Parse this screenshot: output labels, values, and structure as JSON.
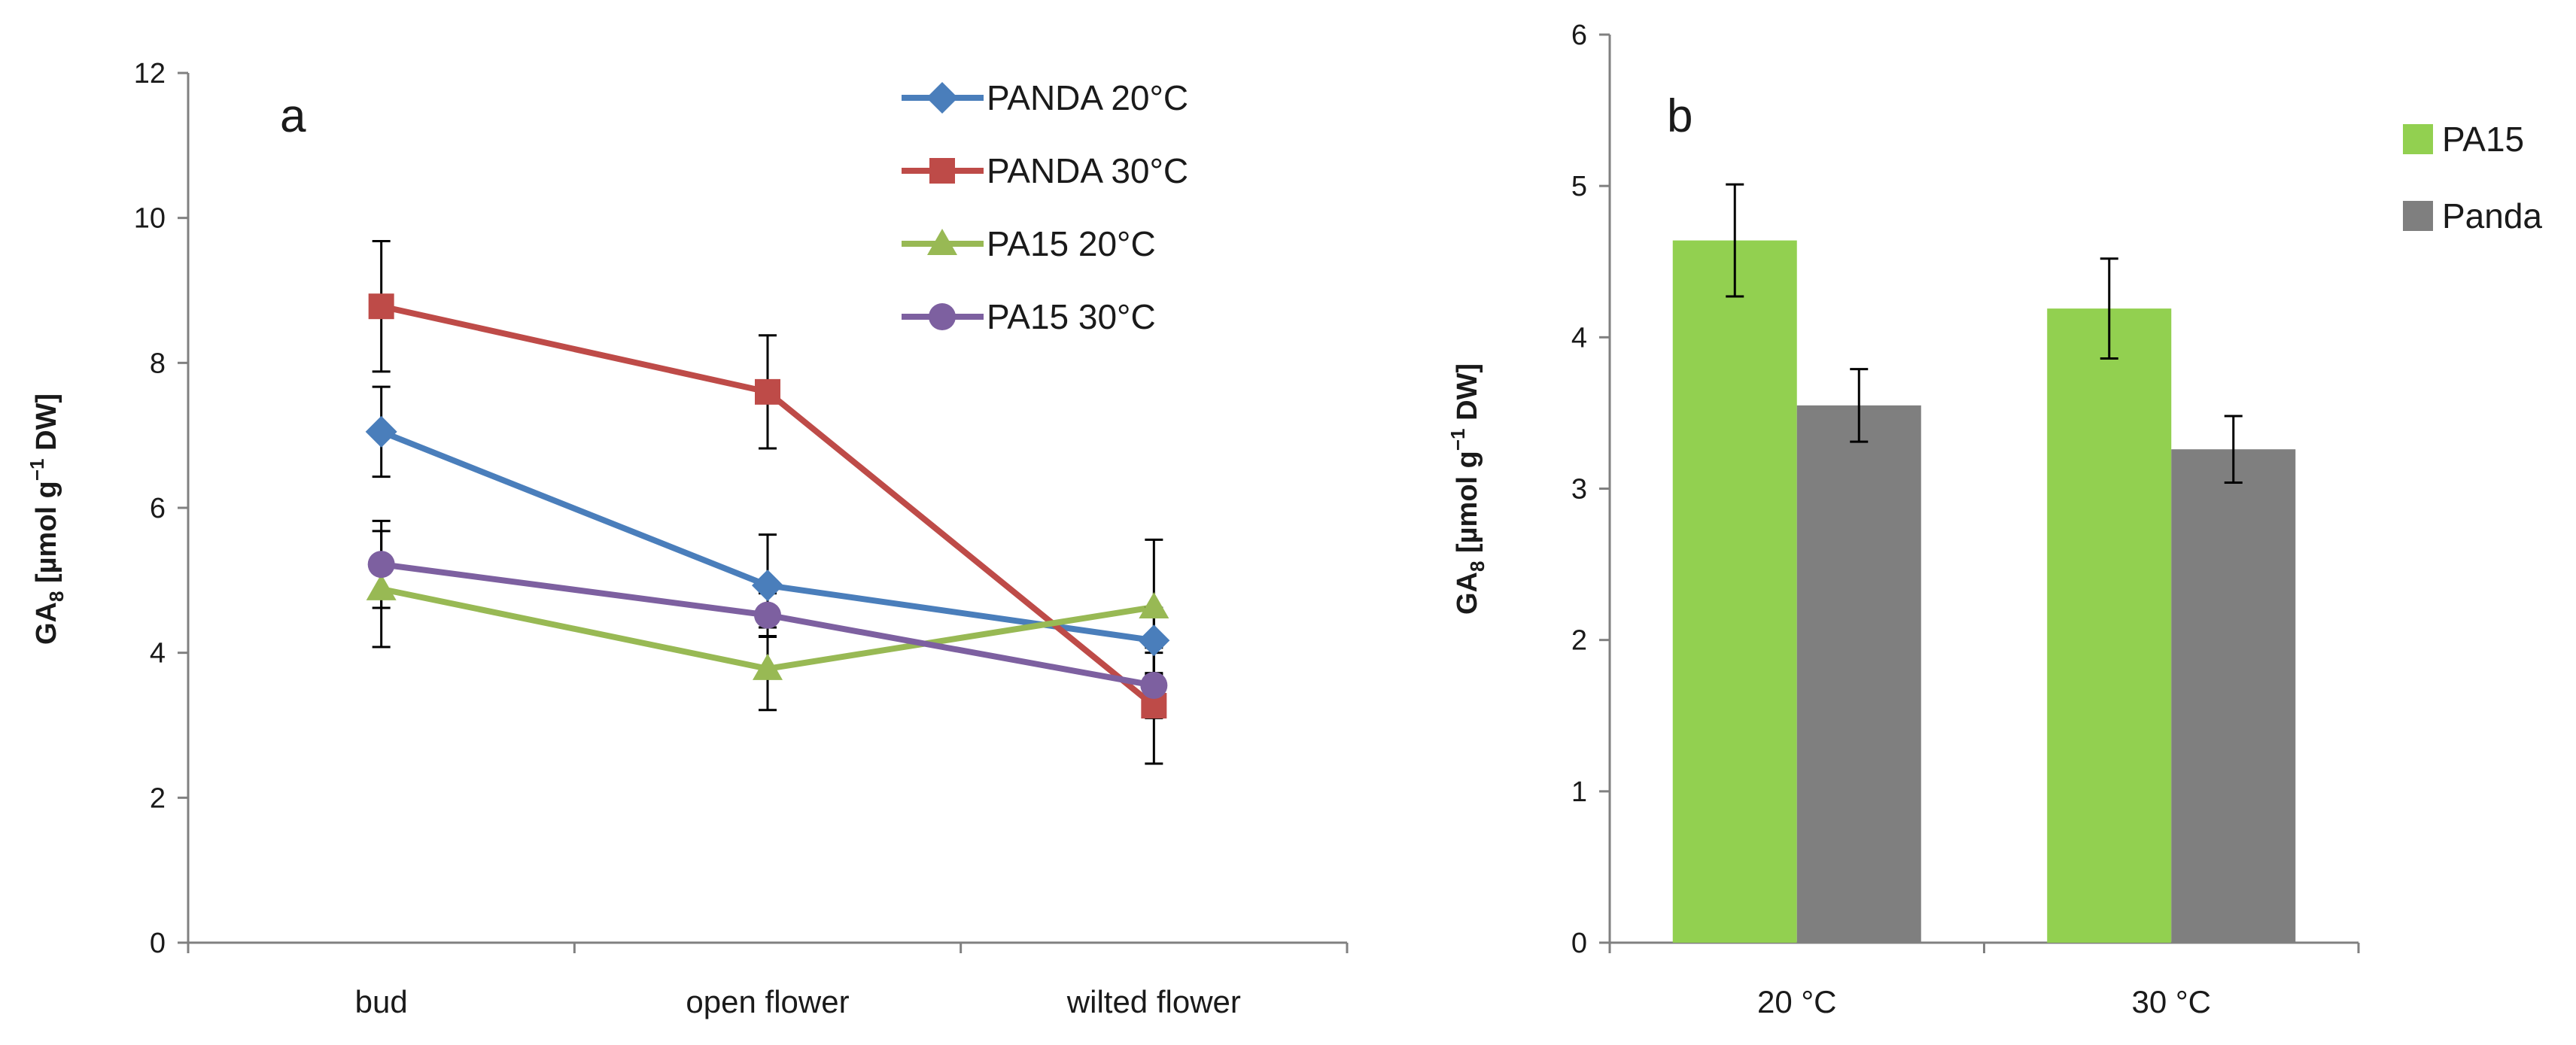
{
  "colors": {
    "axis": "#808080",
    "errorbar": "#000000",
    "panda20": "#4a7ebb",
    "panda30": "#be4b48",
    "pa15_20": "#98b954",
    "pa15_30": "#7d60a0",
    "bar_pa15": "#92d050",
    "bar_panda": "#7f7f7f"
  },
  "chart_data": [
    {
      "panel": "a",
      "type": "line",
      "ylabel": "GA",
      "ylabel_sub": "8",
      "ylabel_unit_pre": " [µmol g",
      "ylabel_sup": "−1",
      "ylabel_unit_post": " DW]",
      "categories": [
        "bud",
        "open flower",
        "wilted flower"
      ],
      "ylim": [
        0,
        12
      ],
      "yticks": [
        0,
        2,
        4,
        6,
        8,
        10,
        12
      ],
      "legend_position": "top-right",
      "series": [
        {
          "name": "PANDA 20°C",
          "marker": "diamond",
          "color_key": "panda20",
          "values": [
            7.05,
            4.93,
            4.17
          ],
          "errors": [
            0.62,
            0.7,
            0.45
          ]
        },
        {
          "name": "PANDA 30°C",
          "marker": "square",
          "color_key": "panda30",
          "values": [
            8.78,
            7.6,
            3.27
          ],
          "errors": [
            0.9,
            0.78,
            0.8
          ]
        },
        {
          "name": "PA15 20°C",
          "marker": "triangle",
          "color_key": "pa15_20",
          "values": [
            4.88,
            3.78,
            4.63
          ],
          "errors": [
            0.8,
            0.57,
            0.93
          ]
        },
        {
          "name": "PA15 30°C",
          "marker": "circle",
          "color_key": "pa15_30",
          "values": [
            5.22,
            4.52,
            3.55
          ],
          "errors": [
            0.6,
            0.3,
            0.45
          ]
        }
      ]
    },
    {
      "panel": "b",
      "type": "bar",
      "ylabel": "GA",
      "ylabel_sub": "8",
      "ylabel_unit_pre": " [µmol g",
      "ylabel_sup": "−1",
      "ylabel_unit_post": " DW]",
      "categories": [
        "20 °C",
        "30 °C"
      ],
      "ylim": [
        0,
        6
      ],
      "yticks": [
        0,
        1,
        2,
        3,
        4,
        5,
        6
      ],
      "legend_position": "top-right",
      "series": [
        {
          "name": "PA15",
          "color_key": "bar_pa15",
          "values": [
            4.64,
            4.19
          ],
          "errors": [
            0.37,
            0.33
          ]
        },
        {
          "name": "Panda",
          "color_key": "bar_panda",
          "values": [
            3.55,
            3.26
          ],
          "errors": [
            0.24,
            0.22
          ]
        }
      ]
    }
  ]
}
